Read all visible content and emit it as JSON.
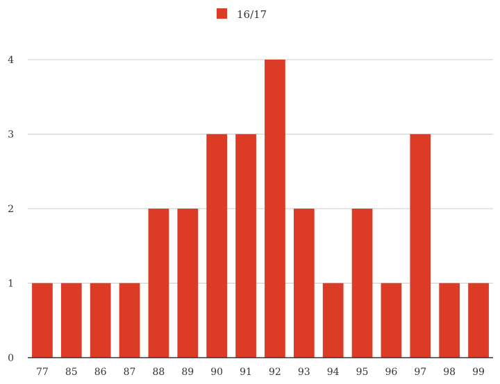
{
  "chart_data": {
    "type": "bar",
    "categories": [
      "77",
      "85",
      "86",
      "87",
      "88",
      "89",
      "90",
      "91",
      "92",
      "93",
      "94",
      "95",
      "96",
      "97",
      "98",
      "99"
    ],
    "series": [
      {
        "name": "16/17",
        "values": [
          1,
          1,
          1,
          1,
          2,
          2,
          3,
          3,
          4,
          2,
          1,
          2,
          1,
          3,
          1,
          1
        ],
        "color": "#dc3b26"
      }
    ],
    "yticks": [
      0,
      1,
      2,
      3,
      4
    ],
    "ylim": [
      0,
      4
    ],
    "grid": true,
    "legend_position": "top-center",
    "gridline_color": "#cccccc",
    "axis_color": "#333333"
  }
}
